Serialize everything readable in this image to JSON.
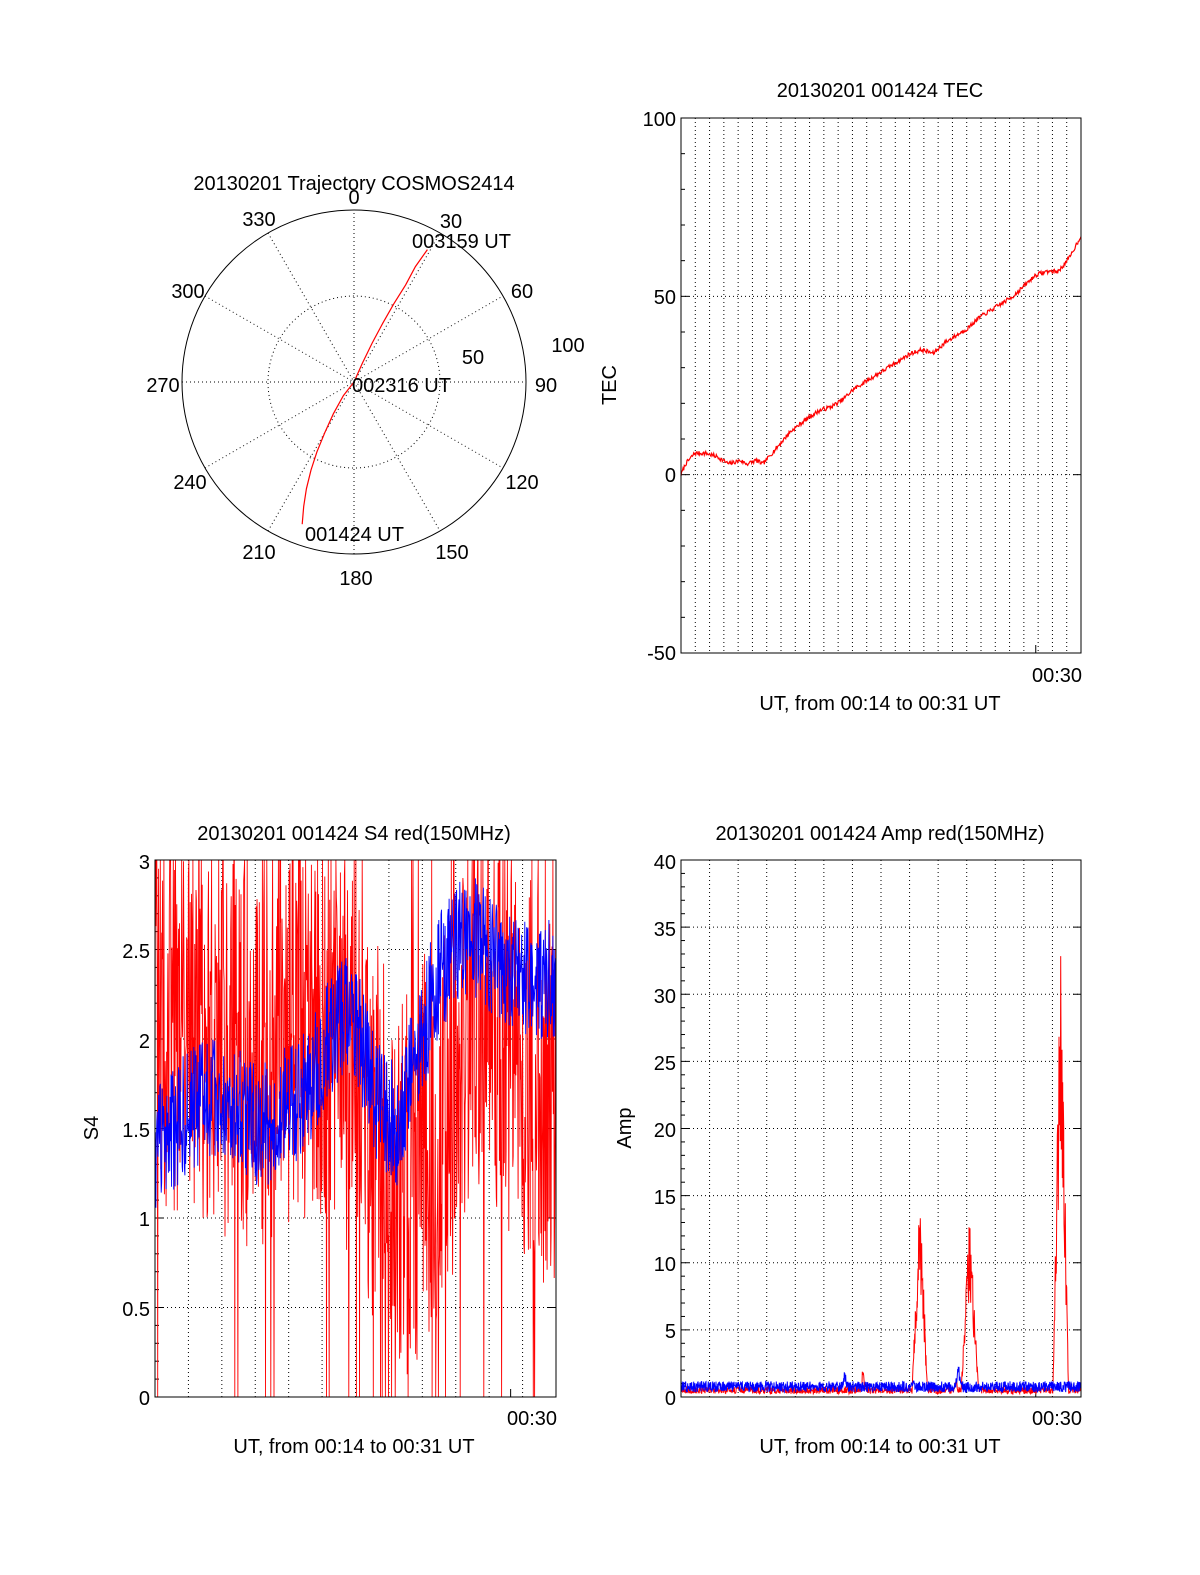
{
  "colors": {
    "primary": "#ff0000",
    "secondary": "#0000ff",
    "axis": "#000000",
    "background": "#ffffff"
  },
  "chart_data": [
    {
      "id": "trajectory",
      "type": "polar",
      "title": "20130201 Trajectory COSMOS2414",
      "angle_labels": [
        "0",
        "30",
        "60",
        "90",
        "120",
        "150",
        "180",
        "210",
        "240",
        "270",
        "300",
        "330"
      ],
      "radius_labels": [
        "50",
        "100"
      ],
      "radius_max": 100,
      "series": [
        {
          "color": "#ff0000",
          "points": [
            {
              "az": 200,
              "r": 88
            },
            {
              "az": 202,
              "r": 78
            },
            {
              "az": 204,
              "r": 68
            },
            {
              "az": 206,
              "r": 57
            },
            {
              "az": 208,
              "r": 46
            },
            {
              "az": 210,
              "r": 34
            },
            {
              "az": 213,
              "r": 22
            },
            {
              "az": 218,
              "r": 10
            },
            {
              "az": 0,
              "r": 0
            },
            {
              "az": 24,
              "r": 12
            },
            {
              "az": 25,
              "r": 25
            },
            {
              "az": 26,
              "r": 38
            },
            {
              "az": 27,
              "r": 51
            },
            {
              "az": 28,
              "r": 64
            },
            {
              "az": 28,
              "r": 76
            },
            {
              "az": 29,
              "r": 88
            }
          ]
        }
      ],
      "annotations": [
        {
          "text": "003159 UT",
          "az": 29,
          "r": 88
        },
        {
          "text": "002316 UT",
          "az": 0,
          "r": 0
        },
        {
          "text": "001424 UT",
          "az": 200,
          "r": 88
        }
      ]
    },
    {
      "id": "tec",
      "type": "line",
      "title": "20130201 001424 TEC",
      "xlabel": "UT, from 00:14 to 00:31 UT",
      "ylabel": "TEC",
      "xlim": [
        14.4,
        31.99
      ],
      "ylim": [
        -50,
        100
      ],
      "yticks": [
        "-50",
        "0",
        "50",
        "100"
      ],
      "xtick_label": "00:30",
      "xtick_value": 30,
      "series": [
        {
          "color": "#ff0000",
          "x": [
            14.4,
            14.6,
            15.0,
            15.5,
            16.0,
            16.5,
            17.0,
            17.3,
            17.7,
            18.0,
            18.4,
            18.8,
            19.2,
            19.6,
            20.0,
            20.5,
            21.0,
            21.5,
            22.0,
            22.5,
            23.0,
            23.5,
            24.0,
            24.5,
            25.0,
            25.5,
            26.0,
            26.5,
            27.0,
            27.5,
            28.0,
            28.5,
            29.0,
            29.5,
            30.0,
            30.5,
            31.0,
            31.5,
            31.99
          ],
          "y": [
            0,
            3,
            6,
            6,
            5,
            3,
            4,
            3,
            4,
            3,
            6,
            9,
            12,
            14,
            16,
            18,
            19,
            21,
            24,
            26,
            28,
            30,
            32,
            34,
            35,
            34,
            37,
            39,
            41,
            44,
            46,
            48,
            50,
            53,
            56,
            57,
            57,
            61,
            67
          ]
        }
      ]
    },
    {
      "id": "s4",
      "type": "line",
      "title": "20130201 001424 S4 red(150MHz)",
      "xlabel": "UT, from 00:14 to 00:31 UT",
      "ylabel": "S4",
      "xlim": [
        14.4,
        31.99
      ],
      "ylim": [
        0,
        3
      ],
      "yticks": [
        "0",
        "0.5",
        "1",
        "1.5",
        "2",
        "2.5",
        "3"
      ],
      "xtick_label": "00:30",
      "xtick_value": 30,
      "series": [
        {
          "color": "#ff0000",
          "noise": 1.1,
          "profile": [
            [
              14.4,
              2.2
            ],
            [
              17,
              2.0
            ],
            [
              19,
              1.9
            ],
            [
              21,
              2.1
            ],
            [
              22.5,
              2.0
            ],
            [
              24,
              1.5
            ],
            [
              25.5,
              1.2
            ],
            [
              27,
              1.6
            ],
            [
              28.5,
              2.2
            ],
            [
              30,
              2.0
            ],
            [
              31.99,
              1.6
            ]
          ]
        },
        {
          "color": "#0000ff",
          "noise": 0.35,
          "profile": [
            [
              14.4,
              1.4
            ],
            [
              16,
              1.6
            ],
            [
              17,
              1.7
            ],
            [
              18,
              1.6
            ],
            [
              19,
              1.5
            ],
            [
              20,
              1.6
            ],
            [
              21,
              1.7
            ],
            [
              22,
              2.0
            ],
            [
              23,
              2.2
            ],
            [
              24,
              1.7
            ],
            [
              25,
              1.5
            ],
            [
              26,
              2.0
            ],
            [
              27,
              2.4
            ],
            [
              28,
              2.6
            ],
            [
              29,
              2.5
            ],
            [
              30,
              2.4
            ],
            [
              31.99,
              2.3
            ]
          ]
        }
      ]
    },
    {
      "id": "amp",
      "type": "line",
      "title": "20130201 001424 Amp red(150MHz)",
      "xlabel": "UT, from 00:14 to 00:31 UT",
      "ylabel": "Amp",
      "xlim": [
        14.4,
        31.99
      ],
      "ylim": [
        0,
        40
      ],
      "yticks": [
        "0",
        "5",
        "10",
        "15",
        "20",
        "25",
        "30",
        "35",
        "40"
      ],
      "xtick_label": "00:30",
      "xtick_value": 30,
      "series": [
        {
          "color": "#ff0000",
          "baseline": 0.6,
          "peaks": [
            [
              22.4,
              2.7,
              0.1
            ],
            [
              24.9,
              16,
              0.35
            ],
            [
              26.5,
              2.0,
              0.1
            ],
            [
              27.1,
              14,
              0.4
            ],
            [
              31.1,
              35,
              0.35
            ]
          ]
        },
        {
          "color": "#0000ff",
          "baseline": 0.9,
          "peaks": [
            [
              21.6,
              2.3,
              0.15
            ],
            [
              24.6,
              1.7,
              0.2
            ],
            [
              26.6,
              2.5,
              0.25
            ]
          ]
        }
      ]
    }
  ]
}
